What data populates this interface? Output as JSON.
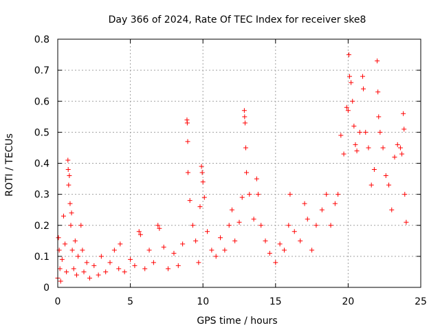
{
  "chart_data": {
    "type": "scatter",
    "title": "Day 366 of 2024, Rate Of TEC Index for receiver ske8",
    "xlabel": "GPS time / hours",
    "ylabel": "ROTI / TECUs",
    "xlim": [
      0,
      25
    ],
    "ylim": [
      0,
      0.8
    ],
    "x_ticks": [
      "0",
      "5",
      "10",
      "15",
      "20",
      "25"
    ],
    "y_ticks": [
      "0",
      "0.1",
      "0.2",
      "0.3",
      "0.4",
      "0.5",
      "0.6",
      "0.7",
      "0.8"
    ],
    "x_tick_values": [
      0,
      5,
      10,
      15,
      20,
      25
    ],
    "y_tick_values": [
      0,
      0.1,
      0.2,
      0.3,
      0.4,
      0.5,
      0.6,
      0.7,
      0.8
    ],
    "grid": true,
    "marker": "+",
    "color": "#ff0000",
    "series": [
      {
        "points": [
          [
            0.0,
            0.03
          ],
          [
            0.05,
            0.16
          ],
          [
            0.1,
            0.12
          ],
          [
            0.15,
            0.06
          ],
          [
            0.2,
            0.02
          ],
          [
            0.3,
            0.09
          ],
          [
            0.4,
            0.23
          ],
          [
            0.5,
            0.14
          ],
          [
            0.6,
            0.05
          ],
          [
            0.7,
            0.41
          ],
          [
            0.72,
            0.38
          ],
          [
            0.75,
            0.33
          ],
          [
            0.8,
            0.36
          ],
          [
            0.85,
            0.27
          ],
          [
            0.9,
            0.2
          ],
          [
            0.95,
            0.24
          ],
          [
            1.0,
            0.12
          ],
          [
            1.1,
            0.06
          ],
          [
            1.2,
            0.15
          ],
          [
            1.3,
            0.04
          ],
          [
            1.4,
            0.1
          ],
          [
            1.6,
            0.2
          ],
          [
            1.7,
            0.12
          ],
          [
            1.8,
            0.05
          ],
          [
            2.0,
            0.08
          ],
          [
            2.2,
            0.03
          ],
          [
            2.5,
            0.07
          ],
          [
            2.8,
            0.04
          ],
          [
            3.0,
            0.1
          ],
          [
            3.3,
            0.05
          ],
          [
            3.6,
            0.08
          ],
          [
            3.9,
            0.12
          ],
          [
            4.2,
            0.06
          ],
          [
            4.3,
            0.14
          ],
          [
            4.6,
            0.05
          ],
          [
            5.0,
            0.09
          ],
          [
            5.3,
            0.07
          ],
          [
            5.6,
            0.18
          ],
          [
            5.7,
            0.17
          ],
          [
            6.0,
            0.06
          ],
          [
            6.3,
            0.12
          ],
          [
            6.6,
            0.08
          ],
          [
            6.9,
            0.2
          ],
          [
            7.0,
            0.19
          ],
          [
            7.3,
            0.13
          ],
          [
            7.6,
            0.06
          ],
          [
            8.0,
            0.11
          ],
          [
            8.3,
            0.07
          ],
          [
            8.6,
            0.14
          ],
          [
            8.9,
            0.54
          ],
          [
            8.92,
            0.53
          ],
          [
            8.95,
            0.47
          ],
          [
            8.97,
            0.37
          ],
          [
            9.1,
            0.28
          ],
          [
            9.3,
            0.2
          ],
          [
            9.5,
            0.15
          ],
          [
            9.7,
            0.08
          ],
          [
            9.8,
            0.26
          ],
          [
            9.9,
            0.39
          ],
          [
            9.95,
            0.37
          ],
          [
            10.0,
            0.34
          ],
          [
            10.1,
            0.29
          ],
          [
            10.3,
            0.18
          ],
          [
            10.6,
            0.12
          ],
          [
            10.9,
            0.1
          ],
          [
            11.2,
            0.16
          ],
          [
            11.5,
            0.12
          ],
          [
            11.8,
            0.2
          ],
          [
            12.0,
            0.25
          ],
          [
            12.2,
            0.15
          ],
          [
            12.5,
            0.21
          ],
          [
            12.7,
            0.29
          ],
          [
            12.85,
            0.57
          ],
          [
            12.87,
            0.55
          ],
          [
            12.9,
            0.53
          ],
          [
            12.95,
            0.45
          ],
          [
            13.0,
            0.37
          ],
          [
            13.2,
            0.3
          ],
          [
            13.5,
            0.22
          ],
          [
            13.7,
            0.35
          ],
          [
            13.8,
            0.3
          ],
          [
            14.0,
            0.2
          ],
          [
            14.3,
            0.15
          ],
          [
            14.6,
            0.11
          ],
          [
            15.0,
            0.08
          ],
          [
            15.3,
            0.14
          ],
          [
            15.6,
            0.12
          ],
          [
            15.9,
            0.2
          ],
          [
            16.0,
            0.3
          ],
          [
            16.3,
            0.18
          ],
          [
            16.7,
            0.15
          ],
          [
            17.0,
            0.27
          ],
          [
            17.2,
            0.22
          ],
          [
            17.5,
            0.12
          ],
          [
            17.8,
            0.2
          ],
          [
            18.2,
            0.25
          ],
          [
            18.5,
            0.3
          ],
          [
            18.8,
            0.2
          ],
          [
            19.1,
            0.27
          ],
          [
            19.3,
            0.3
          ],
          [
            19.5,
            0.49
          ],
          [
            19.7,
            0.43
          ],
          [
            19.9,
            0.58
          ],
          [
            20.0,
            0.57
          ],
          [
            20.05,
            0.75
          ],
          [
            20.1,
            0.68
          ],
          [
            20.2,
            0.66
          ],
          [
            20.3,
            0.6
          ],
          [
            20.4,
            0.52
          ],
          [
            20.5,
            0.46
          ],
          [
            20.6,
            0.44
          ],
          [
            20.8,
            0.5
          ],
          [
            21.0,
            0.68
          ],
          [
            21.05,
            0.64
          ],
          [
            21.2,
            0.5
          ],
          [
            21.4,
            0.45
          ],
          [
            21.6,
            0.33
          ],
          [
            21.8,
            0.38
          ],
          [
            22.0,
            0.73
          ],
          [
            22.05,
            0.63
          ],
          [
            22.1,
            0.55
          ],
          [
            22.2,
            0.5
          ],
          [
            22.4,
            0.45
          ],
          [
            22.6,
            0.36
          ],
          [
            22.8,
            0.33
          ],
          [
            23.0,
            0.25
          ],
          [
            23.2,
            0.42
          ],
          [
            23.4,
            0.46
          ],
          [
            23.6,
            0.45
          ],
          [
            23.7,
            0.43
          ],
          [
            23.8,
            0.56
          ],
          [
            23.85,
            0.51
          ],
          [
            23.9,
            0.3
          ],
          [
            24.0,
            0.21
          ]
        ]
      }
    ]
  }
}
